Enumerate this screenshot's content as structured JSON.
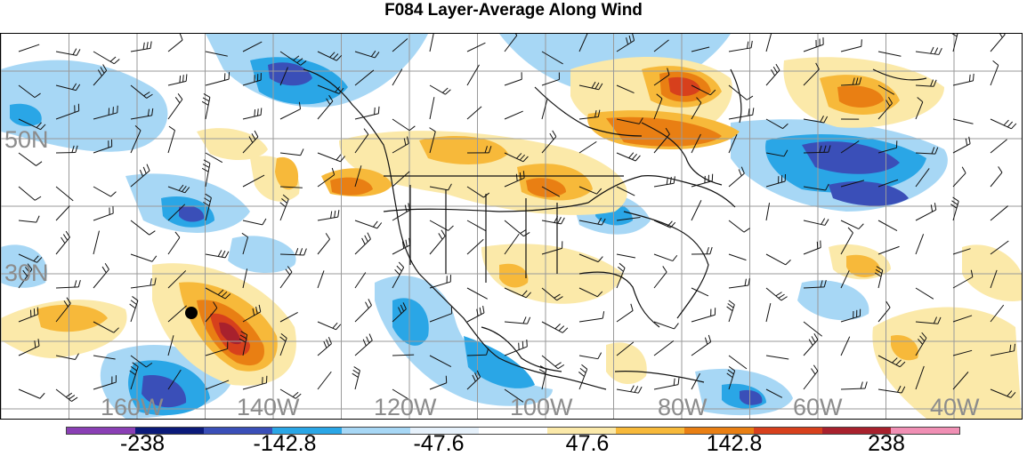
{
  "title": "F084 Layer-Average Along Wind",
  "map": {
    "projection": "latitude-longitude",
    "region": "North America and adjacent Pacific/Atlantic",
    "lat_labels": [
      "50N",
      "30N"
    ],
    "lon_labels": [
      "160W",
      "140W",
      "120W",
      "100W",
      "80W",
      "60W",
      "40W"
    ],
    "label_color": "#8c8c8c",
    "marker": "black dot (point of interest near Hawaii)"
  },
  "colorbar": {
    "colors": [
      "#8a3fb5",
      "#0b1a7a",
      "#3a4fb8",
      "#2aa6e6",
      "#a7d7f5",
      "#e6f1fb",
      "#ffffff",
      "#fbe9a9",
      "#f7b93a",
      "#e97f13",
      "#d7401c",
      "#a8212d",
      "#f08fb4"
    ],
    "labels": [
      "-238",
      "-142.8",
      "-47.6",
      "47.6",
      "142.8",
      "238"
    ]
  }
}
